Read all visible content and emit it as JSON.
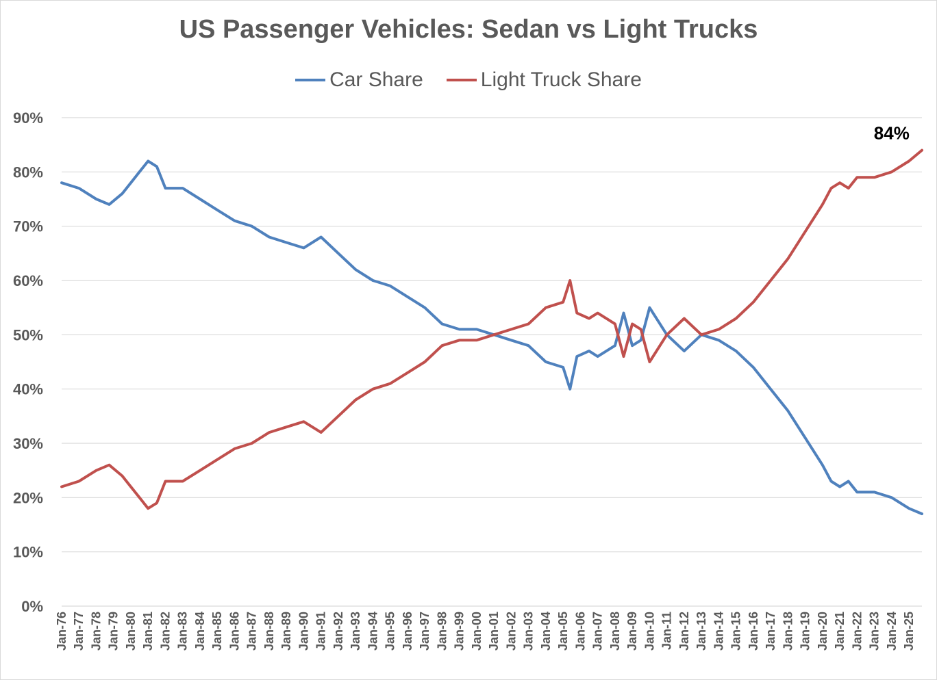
{
  "chart_data": {
    "type": "line",
    "title": "US Passenger Vehicles: Sedan vs Light Trucks",
    "xlabel": "",
    "ylabel": "",
    "ylim": [
      0,
      90
    ],
    "y_ticks": [
      "0%",
      "10%",
      "20%",
      "30%",
      "40%",
      "50%",
      "60%",
      "70%",
      "80%",
      "90%"
    ],
    "x_ticks": [
      "Jan-76",
      "Jan-77",
      "Jan-78",
      "Jan-79",
      "Jan-80",
      "Jan-81",
      "Jan-82",
      "Jan-83",
      "Jan-84",
      "Jan-85",
      "Jan-86",
      "Jan-87",
      "Jan-88",
      "Jan-89",
      "Jan-90",
      "Jan-91",
      "Jan-92",
      "Jan-93",
      "Jan-94",
      "Jan-95",
      "Jan-96",
      "Jan-97",
      "Jan-98",
      "Jan-99",
      "Jan-00",
      "Jan-01",
      "Jan-02",
      "Jan-03",
      "Jan-04",
      "Jan-05",
      "Jan-06",
      "Jan-07",
      "Jan-08",
      "Jan-09",
      "Jan-10",
      "Jan-11",
      "Jan-12",
      "Jan-13",
      "Jan-14",
      "Jan-15",
      "Jan-16",
      "Jan-17",
      "Jan-18",
      "Jan-19",
      "Jan-20",
      "Jan-21",
      "Jan-22",
      "Jan-23",
      "Jan-24",
      "Jan-25"
    ],
    "x_range": [
      1976.0,
      2025.75
    ],
    "grid": true,
    "legend_position": "top",
    "series": [
      {
        "name": "Car Share",
        "color": "#4f81bd",
        "x": [
          1976.0,
          1977.0,
          1978.0,
          1978.75,
          1979.5,
          1980.0,
          1980.5,
          1981.0,
          1981.5,
          1982.0,
          1983.0,
          1984.0,
          1985.0,
          1986.0,
          1987.0,
          1988.0,
          1989.0,
          1990.0,
          1991.0,
          1992.0,
          1993.0,
          1994.0,
          1995.0,
          1996.0,
          1997.0,
          1998.0,
          1999.0,
          2000.0,
          2001.0,
          2002.0,
          2003.0,
          2004.0,
          2005.0,
          2005.4,
          2005.8,
          2006.5,
          2007.0,
          2008.0,
          2008.5,
          2009.0,
          2009.5,
          2010.0,
          2011.0,
          2012.0,
          2013.0,
          2014.0,
          2015.0,
          2016.0,
          2017.0,
          2018.0,
          2019.0,
          2020.0,
          2020.5,
          2021.0,
          2021.5,
          2022.0,
          2023.0,
          2024.0,
          2025.0,
          2025.75
        ],
        "values": [
          78,
          77,
          75,
          74,
          76,
          78,
          80,
          82,
          81,
          77,
          77,
          75,
          73,
          71,
          70,
          68,
          67,
          66,
          68,
          65,
          62,
          60,
          59,
          57,
          55,
          52,
          51,
          51,
          50,
          49,
          48,
          45,
          44,
          40,
          46,
          47,
          46,
          48,
          54,
          48,
          49,
          55,
          50,
          47,
          50,
          49,
          47,
          44,
          40,
          36,
          31,
          26,
          23,
          22,
          23,
          21,
          21,
          20,
          18,
          17
        ]
      },
      {
        "name": "Light Truck Share",
        "color": "#c0504d",
        "x": [
          1976.0,
          1977.0,
          1978.0,
          1978.75,
          1979.5,
          1980.0,
          1980.5,
          1981.0,
          1981.5,
          1982.0,
          1983.0,
          1984.0,
          1985.0,
          1986.0,
          1987.0,
          1988.0,
          1989.0,
          1990.0,
          1991.0,
          1992.0,
          1993.0,
          1994.0,
          1995.0,
          1996.0,
          1997.0,
          1998.0,
          1999.0,
          2000.0,
          2001.0,
          2002.0,
          2003.0,
          2004.0,
          2005.0,
          2005.4,
          2005.8,
          2006.5,
          2007.0,
          2008.0,
          2008.5,
          2009.0,
          2009.5,
          2010.0,
          2011.0,
          2012.0,
          2013.0,
          2014.0,
          2015.0,
          2016.0,
          2017.0,
          2018.0,
          2019.0,
          2020.0,
          2020.5,
          2021.0,
          2021.5,
          2022.0,
          2023.0,
          2024.0,
          2025.0,
          2025.75
        ],
        "values": [
          22,
          23,
          25,
          26,
          24,
          22,
          20,
          18,
          19,
          23,
          23,
          25,
          27,
          29,
          30,
          32,
          33,
          34,
          32,
          35,
          38,
          40,
          41,
          43,
          45,
          48,
          49,
          49,
          50,
          51,
          52,
          55,
          56,
          60,
          54,
          53,
          54,
          52,
          46,
          52,
          51,
          45,
          50,
          53,
          50,
          51,
          53,
          56,
          60,
          64,
          69,
          74,
          77,
          78,
          77,
          79,
          79,
          80,
          82,
          84
        ]
      }
    ],
    "annotations": [
      {
        "text": "84%",
        "x": 2024.0,
        "y": 86
      }
    ]
  }
}
